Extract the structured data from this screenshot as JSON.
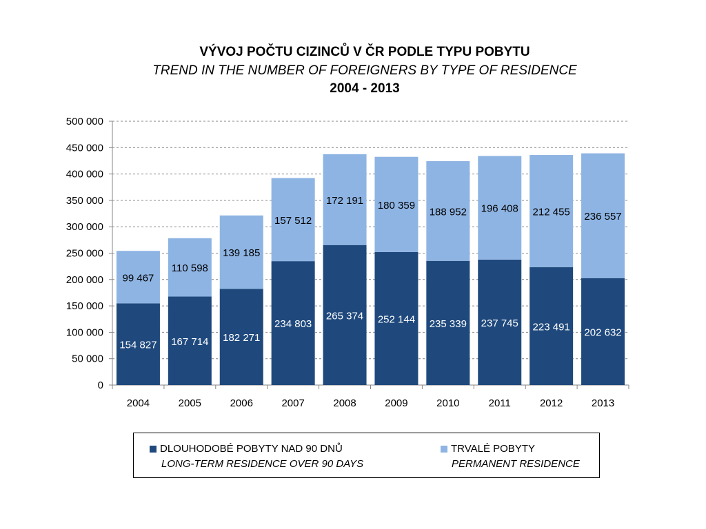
{
  "title": {
    "line1": "VÝVOJ POČTU CIZINCŮ V ČR PODLE TYPU POBYTU",
    "line2": "TREND IN THE NUMBER OF FOREIGNERS BY TYPE OF RESIDENCE",
    "line3": "2004 - 2013"
  },
  "colors": {
    "long_term": "#1F497D",
    "permanent": "#8EB4E3",
    "grid": "#868686"
  },
  "chart_data": {
    "type": "bar",
    "stacked": true,
    "categories": [
      "2004",
      "2005",
      "2006",
      "2007",
      "2008",
      "2009",
      "2010",
      "2011",
      "2012",
      "2013"
    ],
    "series": [
      {
        "name": "DLOUHODOBÉ POBYTY NAD 90 DNŮ",
        "name_en": "LONG-TERM RESIDENCE OVER 90 DAYS",
        "values": [
          154827,
          167714,
          182271,
          234803,
          265374,
          252144,
          235339,
          237745,
          223491,
          202632
        ],
        "labels": [
          "154 827",
          "167 714",
          "182 271",
          "234 803",
          "265 374",
          "252 144",
          "235 339",
          "237 745",
          "223 491",
          "202 632"
        ]
      },
      {
        "name": "TRVALÉ POBYTY",
        "name_en": "PERMANENT RESIDENCE",
        "values": [
          99467,
          110598,
          139185,
          157512,
          172191,
          180359,
          188952,
          196408,
          212455,
          236557
        ],
        "labels": [
          "99 467",
          "110 598",
          "139 185",
          "157 512",
          "172 191",
          "180 359",
          "188 952",
          "196 408",
          "212 455",
          "236 557"
        ]
      }
    ],
    "ylim": [
      0,
      500000
    ],
    "yticks": [
      0,
      50000,
      100000,
      150000,
      200000,
      250000,
      300000,
      350000,
      400000,
      450000,
      500000
    ],
    "ytick_labels": [
      "0",
      "50 000",
      "100 000",
      "150 000",
      "200 000",
      "250 000",
      "300 000",
      "350 000",
      "400 000",
      "450 000",
      "500 000"
    ],
    "grid": true,
    "legend_position": "bottom"
  }
}
